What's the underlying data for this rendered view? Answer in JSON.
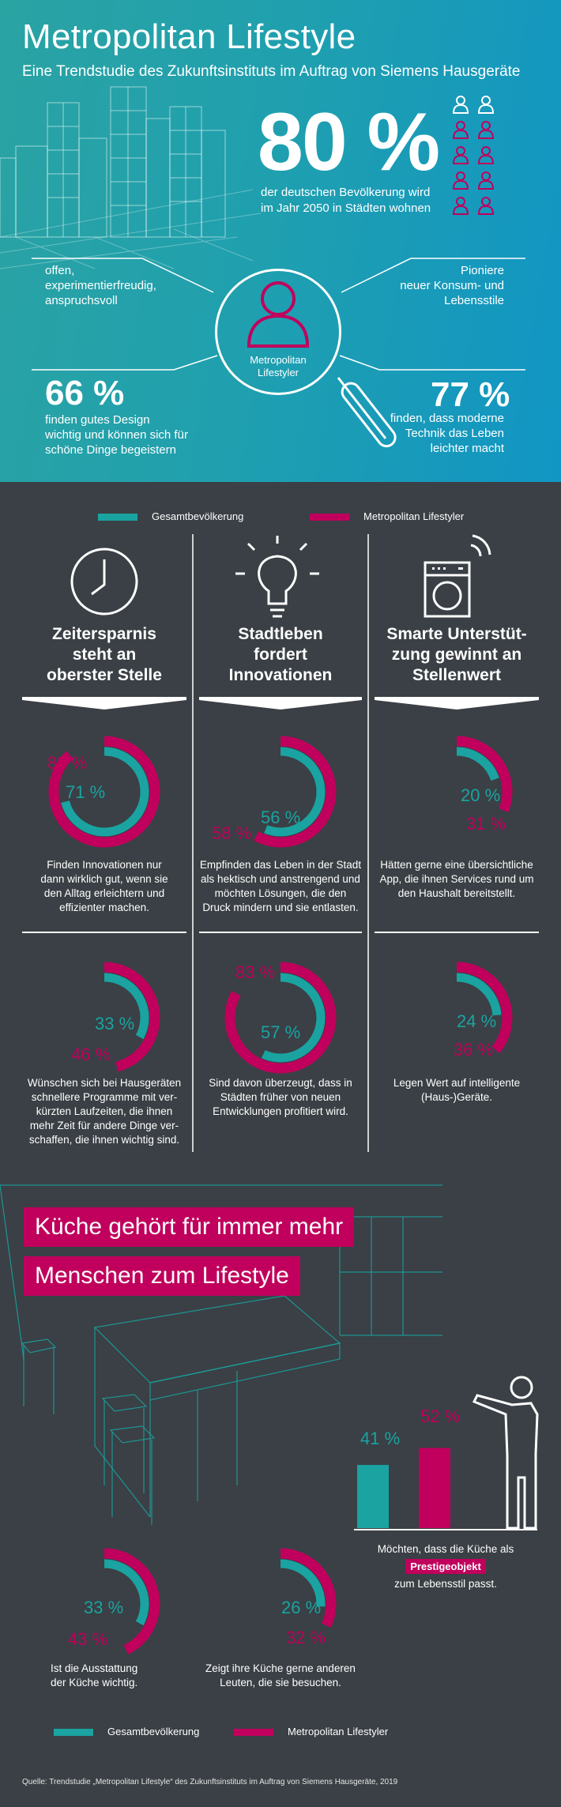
{
  "header": {
    "title": "Metropolitan Lifestyle",
    "subtitle": "Eine Trendstudie des Zukunftsinstituts im Auftrag von Siemens Hausgeräte"
  },
  "urban": {
    "value": "80 %",
    "text": "der deutschen Bevölkerung wird im Jahr 2050 in Städten wohnen",
    "icon_share": 0.8
  },
  "persona": {
    "label_line1": "Metropolitan",
    "label_line2": "Lifestyler",
    "trait_left_1": "offen,",
    "trait_left_2": "experimentierfreudig,",
    "trait_left_3": "anspruchsvoll",
    "trait_right_1": "Pioniere",
    "trait_right_2": "neuer Konsum- und",
    "trait_right_3": "Lebensstile",
    "stat_left_value": "66 %",
    "stat_left_1": "finden gutes Design",
    "stat_left_2": "wichtig und können sich für",
    "stat_left_3": "schöne Dinge begeistern",
    "stat_right_value": "77 %",
    "stat_right_1": "finden, dass moderne",
    "stat_right_2": "Technik das Leben",
    "stat_right_3": "leichter macht"
  },
  "legend": {
    "teal": "Gesamtbevölkerung",
    "magenta": "Metropolitan Lifestyler"
  },
  "colors": {
    "teal": "#1aa3a1",
    "magenta": "#c0005c",
    "dark": "#3a4045"
  },
  "columns": [
    {
      "icon": "clock-icon",
      "h1": "Zeitersparnis",
      "h2": "steht an",
      "h3": "oberster Stelle"
    },
    {
      "icon": "lightbulb-icon",
      "h1": "Stadtleben",
      "h2": "fordert",
      "h3": "Innovationen"
    },
    {
      "icon": "smart-washer-icon",
      "h1": "Smarte Unterstüt-",
      "h2": "zung gewinnt an",
      "h3": "Stellenwert"
    }
  ],
  "stats": [
    {
      "teal": 71,
      "mag": 88,
      "teal_label": "71 %",
      "mag_label": "88 %",
      "d1": "Finden Innovationen nur",
      "d2": "dann wirklich gut, wenn sie",
      "d3": "den Alltag erleichtern und",
      "d4": "effizienter machen."
    },
    {
      "teal": 56,
      "mag": 58,
      "teal_label": "56 %",
      "mag_label": "58 %",
      "d1": "Empfinden das Leben in der Stadt",
      "d2": "als hektisch und anstrengend und",
      "d3": "möchten Lösungen, die den",
      "d4": "Druck mindern und sie entlasten."
    },
    {
      "teal": 20,
      "mag": 31,
      "teal_label": "20 %",
      "mag_label": "31 %",
      "d1": "Hätten gerne eine übersichtliche",
      "d2": "App, die ihnen Services rund um",
      "d3": "den Haushalt bereitstellt.",
      "d4": ""
    },
    {
      "teal": 33,
      "mag": 46,
      "teal_label": "33 %",
      "mag_label": "46 %",
      "d1": "Wünschen sich bei Hausgeräten",
      "d2": "schnellere Programme mit ver-",
      "d3": "kürzten Laufzeiten, die ihnen",
      "d4": "mehr Zeit für andere Dinge ver-",
      "d5": "schaffen, die ihnen wichtig sind."
    },
    {
      "teal": 57,
      "mag": 83,
      "teal_label": "57 %",
      "mag_label": "83 %",
      "d1": "Sind davon überzeugt, dass in",
      "d2": "Städten früher von neuen",
      "d3": "Entwicklungen profitiert wird.",
      "d4": ""
    },
    {
      "teal": 24,
      "mag": 36,
      "teal_label": "24 %",
      "mag_label": "36 %",
      "d1": "Legen Wert auf intelligente",
      "d2": "(Haus-)Geräte.",
      "d3": "",
      "d4": ""
    }
  ],
  "kitchen": {
    "banner1": "Küche gehört für immer mehr",
    "banner2": "Menschen zum Lifestyle",
    "bar_teal": 41,
    "bar_mag": 52,
    "bar_teal_label": "41 %",
    "bar_mag_label": "52 %",
    "bar_text1": "Möchten, dass die Küche als",
    "bar_badge": "Prestigeobjekt",
    "bar_text2": "zum Lebensstil passt.",
    "s1": {
      "teal": 33,
      "mag": 43,
      "teal_label": "33 %",
      "mag_label": "43 %",
      "d1": "Ist die Ausstattung",
      "d2": "der Küche wichtig."
    },
    "s2": {
      "teal": 26,
      "mag": 32,
      "teal_label": "26 %",
      "mag_label": "32 %",
      "d1": "Zeigt ihre Küche gerne anderen",
      "d2": "Leuten, die sie besuchen."
    }
  },
  "source": "Quelle: Trendstudie „Metropolitan Lifestyle“ des  Zukunftsinstituts im Auftrag von Siemens Hausgeräte, 2019"
}
